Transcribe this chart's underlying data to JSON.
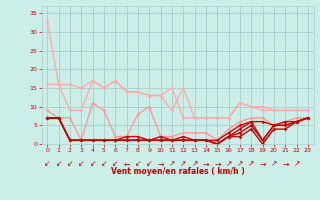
{
  "background_color": "#cceee8",
  "grid_color": "#aacccc",
  "xlabel": "Vent moyen/en rafales ( km/h )",
  "xlabel_color": "#cc0000",
  "tick_color": "#cc0000",
  "xlim": [
    -0.5,
    23.5
  ],
  "ylim": [
    0,
    37
  ],
  "yticks": [
    0,
    5,
    10,
    15,
    20,
    25,
    30,
    35
  ],
  "xticks": [
    0,
    1,
    2,
    3,
    4,
    5,
    6,
    7,
    8,
    9,
    10,
    11,
    12,
    13,
    14,
    15,
    16,
    17,
    18,
    19,
    20,
    21,
    22,
    23
  ],
  "series": [
    {
      "x": [
        0,
        1,
        2,
        3,
        4,
        5,
        6,
        7,
        8,
        9,
        10,
        11,
        12,
        13,
        14,
        15,
        16,
        17,
        18,
        19,
        20,
        21,
        22,
        23
      ],
      "y": [
        33,
        16,
        16,
        15,
        17,
        15,
        17,
        14,
        14,
        13,
        13,
        15,
        7,
        7,
        7,
        7,
        7,
        11,
        10,
        10,
        9,
        9,
        9,
        9
      ],
      "color": "#ffaaaa",
      "lw": 1.0,
      "marker": "D",
      "ms": 1.8
    },
    {
      "x": [
        0,
        1,
        2,
        3,
        4,
        5,
        6,
        7,
        8,
        9,
        10,
        11,
        12,
        13,
        14,
        15,
        16,
        17,
        18,
        19,
        20,
        21,
        22,
        23
      ],
      "y": [
        16,
        16,
        9,
        9,
        17,
        15,
        17,
        14,
        14,
        13,
        13,
        9,
        15,
        7,
        7,
        7,
        7,
        11,
        10,
        9,
        9,
        9,
        9,
        9
      ],
      "color": "#ffaaaa",
      "lw": 1.0,
      "marker": "D",
      "ms": 1.8
    },
    {
      "x": [
        0,
        1,
        2,
        3,
        4,
        5,
        6,
        7,
        8,
        9,
        10,
        11,
        12,
        13,
        14,
        15,
        16,
        17,
        18,
        19,
        20,
        21,
        22,
        23
      ],
      "y": [
        9,
        7,
        7,
        1,
        11,
        9,
        2,
        2,
        8,
        10,
        2,
        2,
        3,
        3,
        3,
        1,
        4,
        6,
        7,
        7,
        5,
        6,
        7,
        7
      ],
      "color": "#ff9999",
      "lw": 1.0,
      "marker": "D",
      "ms": 1.8
    },
    {
      "x": [
        0,
        1,
        2,
        3,
        4,
        5,
        6,
        7,
        8,
        9,
        10,
        11,
        12,
        13,
        14,
        15,
        16,
        17,
        18,
        19,
        20,
        21,
        22,
        23
      ],
      "y": [
        7,
        7,
        1,
        1,
        1,
        1,
        1,
        2,
        2,
        1,
        2,
        1,
        2,
        1,
        1,
        1,
        3,
        5,
        6,
        6,
        5,
        6,
        6,
        7
      ],
      "color": "#dd0000",
      "lw": 1.0,
      "marker": "D",
      "ms": 1.8
    },
    {
      "x": [
        0,
        1,
        2,
        3,
        4,
        5,
        6,
        7,
        8,
        9,
        10,
        11,
        12,
        13,
        14,
        15,
        16,
        17,
        18,
        19,
        20,
        21,
        22,
        23
      ],
      "y": [
        7,
        7,
        1,
        1,
        1,
        1,
        1,
        1,
        1,
        1,
        1,
        1,
        1,
        1,
        1,
        0,
        2,
        4,
        6,
        1,
        5,
        5,
        6,
        7
      ],
      "color": "#dd0000",
      "lw": 1.0,
      "marker": "D",
      "ms": 1.8
    },
    {
      "x": [
        0,
        1,
        2,
        3,
        4,
        5,
        6,
        7,
        8,
        9,
        10,
        11,
        12,
        13,
        14,
        15,
        16,
        17,
        18,
        19,
        20,
        21,
        22,
        23
      ],
      "y": [
        7,
        7,
        1,
        1,
        1,
        1,
        1,
        1,
        1,
        1,
        1,
        1,
        1,
        1,
        1,
        0,
        2,
        3,
        5,
        1,
        5,
        5,
        6,
        7
      ],
      "color": "#cc0000",
      "lw": 1.0,
      "marker": "D",
      "ms": 1.8
    },
    {
      "x": [
        0,
        1,
        2,
        3,
        4,
        5,
        6,
        7,
        8,
        9,
        10,
        11,
        12,
        13,
        14,
        15,
        16,
        17,
        18,
        19,
        20,
        21,
        22,
        23
      ],
      "y": [
        7,
        7,
        1,
        1,
        1,
        1,
        1,
        1,
        1,
        1,
        1,
        1,
        1,
        1,
        1,
        0,
        2,
        2,
        4,
        0,
        4,
        4,
        6,
        7
      ],
      "color": "#cc0000",
      "lw": 1.0,
      "marker": "D",
      "ms": 1.8
    }
  ],
  "arrows": [
    "↙",
    "↙",
    "↙",
    "↙",
    "↙",
    "↙",
    "↙",
    "←",
    "↙",
    "↙",
    "→",
    "↗",
    "↗",
    "↗",
    "→",
    "→",
    "↗",
    "↗",
    "↗",
    "→",
    "↗",
    "→",
    "↗"
  ],
  "arrow_color": "#cc0000",
  "arrow_fontsize": 5.5
}
